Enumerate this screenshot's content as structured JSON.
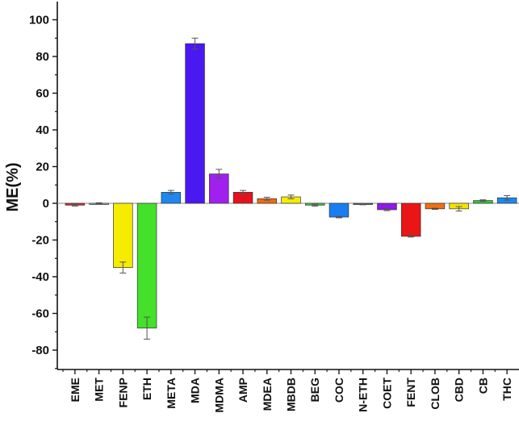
{
  "chart_data": {
    "type": "bar",
    "ylabel": "ME(%)",
    "xlabel": "",
    "ylim": [
      -90,
      110
    ],
    "yticks": [
      -80,
      -60,
      -40,
      -20,
      0,
      20,
      40,
      60,
      80,
      100
    ],
    "yticks_text": [
      "-80",
      "-60",
      "-40",
      "-20",
      "0",
      "20",
      "40",
      "60",
      "80",
      "100"
    ],
    "grid": false,
    "categories": [
      "EME",
      "MET",
      "FENP",
      "ETH",
      "META",
      "MDA",
      "MDMA",
      "AMP",
      "MDEA",
      "MBDB",
      "BEG",
      "COC",
      "N-ETH",
      "COET",
      "FENT",
      "CLOB",
      "CBD",
      "CB",
      "THC"
    ],
    "values": [
      -1,
      0,
      -35,
      -68,
      6,
      87,
      16,
      6,
      2.5,
      3.5,
      -1,
      -7.5,
      -0.5,
      -3.5,
      -18,
      -3,
      -3,
      1.5,
      3
    ],
    "errors": [
      0.5,
      0.3,
      3,
      6,
      1,
      3,
      2.5,
      1,
      0.8,
      1,
      0.5,
      0.4,
      0.3,
      0.5,
      0.4,
      0.3,
      1.2,
      0.4,
      1.2
    ],
    "colors": [
      "#e8232a",
      "#b0b0b0",
      "#f5ec00",
      "#44e02a",
      "#1e88f0",
      "#4a18f0",
      "#a020f0",
      "#e8101e",
      "#f26a10",
      "#f5ec00",
      "#34d034",
      "#1a7ef0",
      "#5a5a5a",
      "#9018e8",
      "#ea1616",
      "#f07010",
      "#f2e400",
      "#2ecc2e",
      "#1e88f0"
    ]
  }
}
